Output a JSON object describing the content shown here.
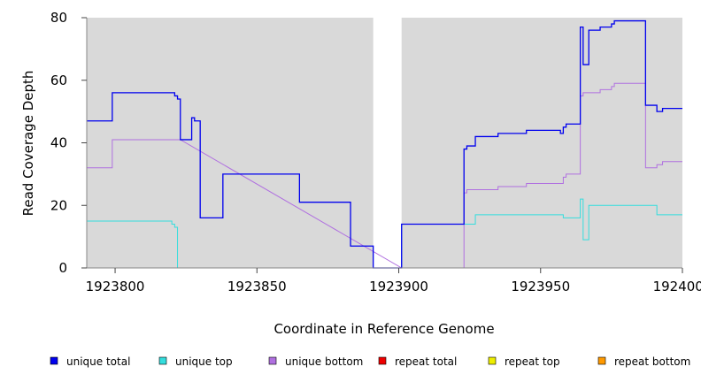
{
  "chart_data": {
    "type": "line",
    "step": true,
    "xlabel": "Coordinate in Reference Genome",
    "ylabel": "Read Coverage Depth",
    "xlim": [
      1923790,
      1924000
    ],
    "ylim": [
      0,
      80
    ],
    "x_ticks": [
      1923800,
      1923850,
      1923900,
      1923950,
      1924000
    ],
    "x_tick_labels": [
      "1923800",
      "1923850",
      "1923900",
      "1923950",
      "1924000"
    ],
    "y_ticks": [
      0,
      20,
      40,
      60,
      80
    ],
    "y_tick_labels": [
      "0",
      "20",
      "40",
      "60",
      "80"
    ],
    "background": "#d9d9d9",
    "gap_region": [
      1923891,
      1923901
    ],
    "legend_position": "bottom",
    "series": [
      {
        "name": "unique total",
        "color": "#0000ee",
        "points": [
          [
            1923790,
            47
          ],
          [
            1923799,
            47
          ],
          [
            1923799,
            56
          ],
          [
            1923821,
            56
          ],
          [
            1923821,
            55
          ],
          [
            1923822,
            55
          ],
          [
            1923822,
            54
          ],
          [
            1923823,
            54
          ],
          [
            1923823,
            41
          ],
          [
            1923827,
            41
          ],
          [
            1923827,
            48
          ],
          [
            1923828,
            48
          ],
          [
            1923828,
            47
          ],
          [
            1923830,
            47
          ],
          [
            1923830,
            16
          ],
          [
            1923838,
            16
          ],
          [
            1923838,
            30
          ],
          [
            1923865,
            30
          ],
          [
            1923865,
            21
          ],
          [
            1923883,
            21
          ],
          [
            1923883,
            7
          ],
          [
            1923891,
            7
          ],
          [
            1923891,
            0
          ],
          [
            1923901,
            0
          ],
          [
            1923901,
            14
          ],
          [
            1923923,
            14
          ],
          [
            1923923,
            38
          ],
          [
            1923924,
            38
          ],
          [
            1923924,
            39
          ],
          [
            1923927,
            39
          ],
          [
            1923927,
            42
          ],
          [
            1923935,
            42
          ],
          [
            1923935,
            43
          ],
          [
            1923945,
            43
          ],
          [
            1923945,
            44
          ],
          [
            1923957,
            44
          ],
          [
            1923957,
            43
          ],
          [
            1923958,
            43
          ],
          [
            1923958,
            45
          ],
          [
            1923959,
            45
          ],
          [
            1923959,
            46
          ],
          [
            1923964,
            46
          ],
          [
            1923964,
            77
          ],
          [
            1923965,
            77
          ],
          [
            1923965,
            65
          ],
          [
            1923967,
            65
          ],
          [
            1923967,
            76
          ],
          [
            1923971,
            76
          ],
          [
            1923971,
            77
          ],
          [
            1923975,
            77
          ],
          [
            1923975,
            78
          ],
          [
            1923976,
            78
          ],
          [
            1923976,
            79
          ],
          [
            1923987,
            79
          ],
          [
            1923987,
            52
          ],
          [
            1923991,
            52
          ],
          [
            1923991,
            50
          ],
          [
            1923993,
            50
          ],
          [
            1923993,
            51
          ],
          [
            1924000,
            51
          ]
        ]
      },
      {
        "name": "unique top",
        "color": "#33dddd",
        "points": [
          [
            1923790,
            15
          ],
          [
            1923820,
            15
          ],
          [
            1923820,
            14
          ],
          [
            1923821,
            14
          ],
          [
            1923821,
            13
          ],
          [
            1923822,
            13
          ],
          [
            1923822,
            0
          ],
          [
            1923901,
            0
          ],
          [
            1923901,
            14
          ],
          [
            1923923,
            14
          ],
          [
            1923923,
            14
          ],
          [
            1923927,
            14
          ],
          [
            1923927,
            17
          ],
          [
            1923958,
            17
          ],
          [
            1923958,
            16
          ],
          [
            1923964,
            16
          ],
          [
            1923964,
            22
          ],
          [
            1923965,
            22
          ],
          [
            1923965,
            9
          ],
          [
            1923967,
            9
          ],
          [
            1923967,
            20
          ],
          [
            1923991,
            20
          ],
          [
            1923991,
            17
          ],
          [
            1924000,
            17
          ]
        ]
      },
      {
        "name": "unique bottom",
        "color": "#b070e0",
        "points": [
          [
            1923790,
            32
          ],
          [
            1923799,
            32
          ],
          [
            1923799,
            41
          ],
          [
            1923823,
            41
          ],
          [
            1923901,
            0
          ],
          [
            1923923,
            0
          ],
          [
            1923923,
            24
          ],
          [
            1923924,
            24
          ],
          [
            1923924,
            25
          ],
          [
            1923935,
            25
          ],
          [
            1923935,
            26
          ],
          [
            1923945,
            26
          ],
          [
            1923945,
            27
          ],
          [
            1923958,
            27
          ],
          [
            1923958,
            29
          ],
          [
            1923959,
            29
          ],
          [
            1923959,
            30
          ],
          [
            1923964,
            30
          ],
          [
            1923964,
            55
          ],
          [
            1923965,
            55
          ],
          [
            1923965,
            56
          ],
          [
            1923971,
            56
          ],
          [
            1923971,
            57
          ],
          [
            1923975,
            57
          ],
          [
            1923975,
            58
          ],
          [
            1923976,
            58
          ],
          [
            1923976,
            59
          ],
          [
            1923987,
            59
          ],
          [
            1923987,
            32
          ],
          [
            1923991,
            32
          ],
          [
            1923991,
            33
          ],
          [
            1923993,
            33
          ],
          [
            1923993,
            34
          ],
          [
            1924000,
            34
          ]
        ]
      },
      {
        "name": "repeat total",
        "color": "#ee0000",
        "points": [
          [
            1923790,
            0
          ],
          [
            1924000,
            0
          ]
        ]
      },
      {
        "name": "repeat top",
        "color": "#eeee00",
        "points": [
          [
            1923790,
            0
          ],
          [
            1924000,
            0
          ]
        ]
      },
      {
        "name": "repeat bottom",
        "color": "#ff9900",
        "points": [
          [
            1923790,
            0
          ],
          [
            1924000,
            0
          ]
        ]
      }
    ]
  }
}
